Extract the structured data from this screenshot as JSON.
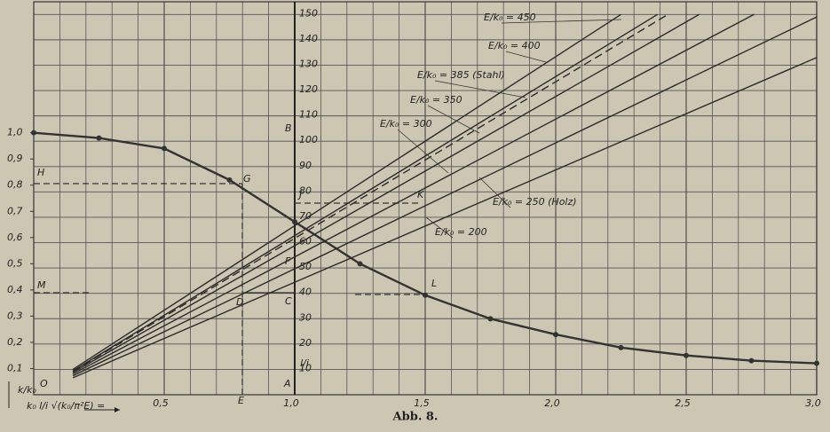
{
  "chart_data": {
    "type": "line",
    "caption": "Abb. 8.",
    "x_label": "k₀ l/i √(k₀/π²E) =",
    "y_label": "k/k₀",
    "y2_label": "l/i",
    "xlim": [
      0,
      3
    ],
    "xticks": [
      {
        "value": 0.5,
        "label": "0,5"
      },
      {
        "value": 1.0,
        "label": "1,0"
      },
      {
        "value": 1.5,
        "label": "1,5"
      },
      {
        "value": 2.0,
        "label": "2,0"
      },
      {
        "value": 2.5,
        "label": "2,5"
      },
      {
        "value": 3.0,
        "label": "3,0"
      }
    ],
    "ylim": [
      0,
      1.5
    ],
    "yticks": [
      {
        "value": 0.1,
        "label": "0,1"
      },
      {
        "value": 0.2,
        "label": "0,2"
      },
      {
        "value": 0.3,
        "label": "0,3"
      },
      {
        "value": 0.4,
        "label": "0,4"
      },
      {
        "value": 0.5,
        "label": "0,5"
      },
      {
        "value": 0.6,
        "label": "0,6"
      },
      {
        "value": 0.7,
        "label": "0,7"
      },
      {
        "value": 0.8,
        "label": "0,8"
      },
      {
        "value": 0.9,
        "label": "0,9"
      },
      {
        "value": 1.0,
        "label": "1,0"
      }
    ],
    "y2lim": [
      0,
      155
    ],
    "y2ticks": [
      10,
      20,
      30,
      40,
      50,
      60,
      70,
      80,
      90,
      100,
      110,
      120,
      130,
      140,
      150
    ],
    "grid": true,
    "series": [
      {
        "color": "#333333",
        "markers": true,
        "x": [
          0,
          0.25,
          0.5,
          0.75,
          1.0,
          1.25,
          1.5,
          1.75,
          2.0,
          2.25,
          2.5,
          2.75,
          3.0
        ],
        "values": [
          1.0,
          0.98,
          0.94,
          0.82,
          0.66,
          0.5,
          0.38,
          0.29,
          0.23,
          0.18,
          0.15,
          0.13,
          0.12
        ]
      },
      {
        "name": "E/k₀ = 450",
        "color": "#2b2b2b",
        "axis": "y2",
        "dashed": false,
        "x": [
          0.15,
          2.25
        ],
        "values": [
          10.0,
          150
        ]
      },
      {
        "name": "E/k₀ = 400",
        "color": "#2b2b2b",
        "axis": "y2",
        "dashed": false,
        "x": [
          0.15,
          2.39
        ],
        "values": [
          9.4,
          150
        ]
      },
      {
        "name": "E/k₀ = 385 (Stahl)",
        "color": "#2b2b2b",
        "axis": "y2",
        "dashed": true,
        "x": [
          0.15,
          2.43
        ],
        "values": [
          9.2,
          150
        ]
      },
      {
        "name": "E/k₀ = 350",
        "color": "#2b2b2b",
        "axis": "y2",
        "dashed": false,
        "x": [
          0.15,
          2.55
        ],
        "values": [
          8.8,
          150
        ]
      },
      {
        "name": "E/k₀ = 300",
        "color": "#2b2b2b",
        "axis": "y2",
        "dashed": false,
        "x": [
          0.15,
          2.76
        ],
        "values": [
          8.2,
          150
        ]
      },
      {
        "name": "E/k₀ = 250 (Holz)",
        "color": "#2b2b2b",
        "axis": "y2",
        "dashed": false,
        "x": [
          0.15,
          3.0
        ],
        "values": [
          7.5,
          149
        ]
      },
      {
        "name": "E/k₀ = 200",
        "color": "#2b2b2b",
        "axis": "y2",
        "dashed": false,
        "x": [
          0.15,
          3.0
        ],
        "values": [
          6.7,
          133
        ]
      }
    ],
    "point_labels": [
      "O",
      "A",
      "E",
      "D",
      "C",
      "F",
      "B",
      "J",
      "K",
      "G",
      "H",
      "M",
      "L"
    ]
  }
}
